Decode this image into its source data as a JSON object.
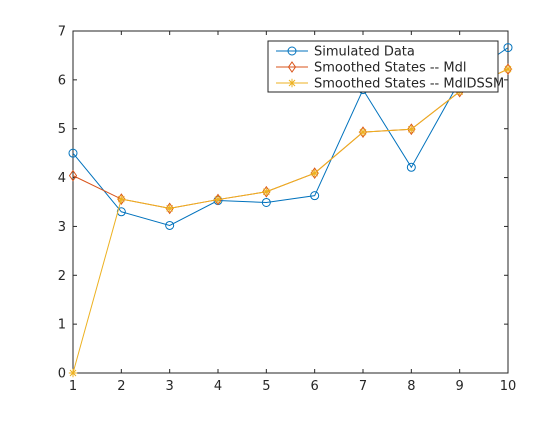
{
  "chart_data": {
    "type": "line",
    "title": "",
    "xlabel": "",
    "ylabel": "",
    "xlim": [
      1,
      10
    ],
    "ylim": [
      0,
      7
    ],
    "x": [
      1,
      2,
      3,
      4,
      5,
      6,
      7,
      8,
      9,
      10
    ],
    "xticks": [
      "1",
      "2",
      "3",
      "4",
      "5",
      "6",
      "7",
      "8",
      "9",
      "10"
    ],
    "yticks": [
      "0",
      "1",
      "2",
      "3",
      "4",
      "5",
      "6",
      "7"
    ],
    "grid": false,
    "legend_position": "top-right",
    "series": [
      {
        "name": "Simulated Data",
        "color": "#0072BD",
        "marker": "circle",
        "values": [
          4.5,
          3.3,
          3.02,
          3.53,
          3.49,
          3.63,
          5.8,
          4.21,
          5.98,
          6.66
        ]
      },
      {
        "name": "Smoothed States -- Mdl",
        "color": "#D95319",
        "marker": "diamond",
        "values": [
          4.04,
          3.56,
          3.37,
          3.55,
          3.71,
          4.09,
          4.93,
          4.99,
          5.76,
          6.22
        ]
      },
      {
        "name": "Smoothed States -- MdlDSSM",
        "color": "#EDB120",
        "marker": "asterisk",
        "values": [
          0.0,
          3.56,
          3.37,
          3.55,
          3.71,
          4.09,
          4.93,
          4.99,
          5.76,
          6.22
        ]
      }
    ]
  }
}
